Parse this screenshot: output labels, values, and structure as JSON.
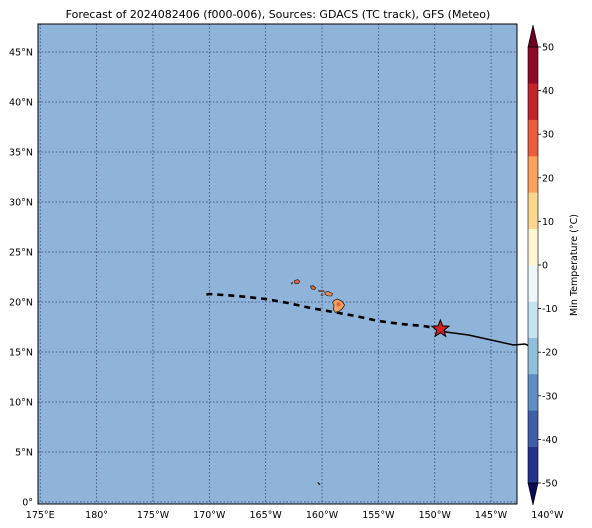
{
  "title": "Forecast of 2024082406 (f000-006), Sources: GDACS (TC track), GFS (Meteo)",
  "map": {
    "ocean_color": "#8fb3d9",
    "grid_color": "#2c3e66",
    "lat_ticks": [
      {
        "value": 0,
        "label": "0°"
      },
      {
        "value": 5,
        "label": "5°N"
      },
      {
        "value": 10,
        "label": "10°N"
      },
      {
        "value": 15,
        "label": "15°N"
      },
      {
        "value": 20,
        "label": "20°N"
      },
      {
        "value": 25,
        "label": "25°N"
      },
      {
        "value": 30,
        "label": "30°N"
      },
      {
        "value": 35,
        "label": "35°N"
      },
      {
        "value": 40,
        "label": "40°N"
      },
      {
        "value": 45,
        "label": "45°N"
      }
    ],
    "lon_ticks": [
      {
        "value": 175,
        "label": "175°E"
      },
      {
        "value": 180,
        "label": "180°"
      },
      {
        "value": 185,
        "label": "175°W"
      },
      {
        "value": 190,
        "label": "170°W"
      },
      {
        "value": 195,
        "label": "165°W"
      },
      {
        "value": 200,
        "label": "160°W"
      },
      {
        "value": 205,
        "label": "155°W"
      },
      {
        "value": 210,
        "label": "150°W"
      },
      {
        "value": 215,
        "label": "145°W"
      },
      {
        "value": 220,
        "label": "140°W"
      }
    ],
    "lon_range": [
      174.8,
      217.3
    ],
    "lat_range": [
      -0.2,
      47.8
    ],
    "track_past": [
      [
        219.1,
        15.3
      ],
      [
        218,
        15.8
      ],
      [
        217,
        15.7
      ],
      [
        215,
        16.2
      ],
      [
        213,
        16.7
      ],
      [
        211,
        17.0
      ],
      [
        210.5,
        17.3
      ]
    ],
    "track_forecast": [
      [
        210.5,
        17.3
      ],
      [
        209,
        17.6
      ],
      [
        207,
        17.8
      ],
      [
        205,
        18.1
      ],
      [
        203,
        18.6
      ],
      [
        201,
        19.0
      ],
      [
        199,
        19.4
      ],
      [
        197,
        19.9
      ],
      [
        195,
        20.3
      ],
      [
        192.5,
        20.6
      ],
      [
        190,
        20.8
      ],
      [
        189.6,
        20.7
      ]
    ],
    "storm_position": [
      210.5,
      17.3
    ],
    "storm_color": "#d62020"
  },
  "colorbar": {
    "label": "Min Temperature (°C)",
    "ticks": [
      "-50",
      "-40",
      "-30",
      "-20",
      "-10",
      "0",
      "10",
      "20",
      "30",
      "40",
      "50"
    ],
    "colors": [
      "#26338a",
      "#3e5ea8",
      "#5f8ec2",
      "#91bfdb",
      "#c6e3ef",
      "#eef8f9",
      "#fff8d2",
      "#fdd690",
      "#fba25d",
      "#ea5c3c",
      "#c4232b",
      "#8e0a26"
    ],
    "under_color": "#0a0a55",
    "over_color": "#6d0020"
  }
}
